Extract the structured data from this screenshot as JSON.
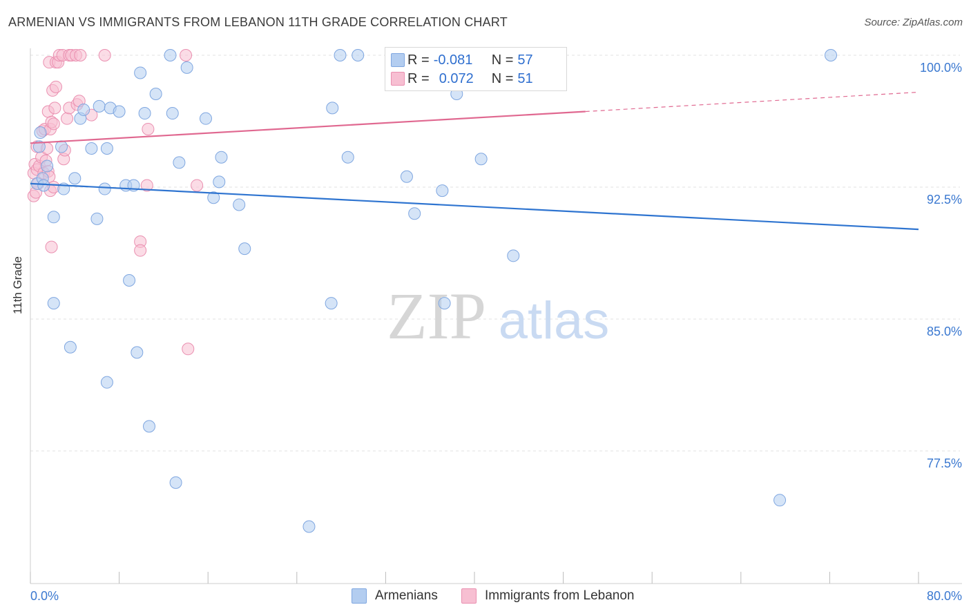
{
  "header": {
    "title": "ARMENIAN VS IMMIGRANTS FROM LEBANON 11TH GRADE CORRELATION CHART",
    "source": "Source: ZipAtlas.com"
  },
  "watermark": {
    "zip": "ZIP",
    "atlas": "atlas"
  },
  "legend": {
    "series1": {
      "r_label": "R =",
      "r_value": "-0.081",
      "n_label": "N =",
      "n_value": "57"
    },
    "series2": {
      "r_label": "R =",
      "r_value": "0.072",
      "n_label": "N =",
      "n_value": "51"
    }
  },
  "bottom_legend": {
    "series1": "Armenians",
    "series2": "Immigrants from Lebanon"
  },
  "colors": {
    "armenians_fill": "#b3cdf0",
    "armenians_stroke": "#7ea6e0",
    "armenians_line": "#2e74d0",
    "lebanon_fill": "#f7bfd2",
    "lebanon_stroke": "#ea8fb0",
    "lebanon_line": "#e06890",
    "axis_text": "#3a78d0",
    "grid": "#e2e2e2"
  },
  "chart_data": {
    "type": "scatter",
    "title": "ARMENIAN VS IMMIGRANTS FROM LEBANON 11TH GRADE CORRELATION CHART",
    "xlabel": "",
    "ylabel": "11th Grade",
    "xlim": [
      0,
      80
    ],
    "ylim": [
      71,
      100.5
    ],
    "x_tick_labels": [
      "0.0%",
      "80.0%"
    ],
    "y_ticks": [
      77.5,
      85.0,
      92.5,
      100.0
    ],
    "y_tick_labels": [
      "77.5%",
      "85.0%",
      "92.5%",
      "100.0%"
    ],
    "grid": true,
    "legend_position": "top-center",
    "series": [
      {
        "name": "Armenians",
        "R": -0.081,
        "N": 57,
        "trend": {
          "x": [
            0,
            80
          ],
          "y": [
            92.7,
            90.1
          ]
        },
        "points": [
          [
            0.6,
            92.7
          ],
          [
            0.9,
            95.6
          ],
          [
            0.8,
            94.8
          ],
          [
            1.1,
            93.0
          ],
          [
            1.2,
            92.6
          ],
          [
            1.5,
            93.7
          ],
          [
            2.1,
            90.8
          ],
          [
            2.8,
            94.8
          ],
          [
            3.0,
            92.4
          ],
          [
            4.0,
            93.0
          ],
          [
            4.5,
            96.4
          ],
          [
            4.8,
            96.9
          ],
          [
            5.5,
            94.7
          ],
          [
            6.0,
            90.7
          ],
          [
            6.2,
            97.1
          ],
          [
            6.7,
            92.4
          ],
          [
            6.9,
            94.7
          ],
          [
            7.2,
            97.0
          ],
          [
            8.0,
            96.8
          ],
          [
            8.6,
            92.6
          ],
          [
            9.3,
            92.6
          ],
          [
            9.9,
            99.0
          ],
          [
            10.3,
            96.7
          ],
          [
            11.3,
            97.8
          ],
          [
            12.6,
            100.0
          ],
          [
            12.8,
            96.7
          ],
          [
            13.4,
            93.9
          ],
          [
            14.1,
            99.3
          ],
          [
            15.8,
            96.4
          ],
          [
            16.5,
            91.9
          ],
          [
            17.0,
            92.8
          ],
          [
            17.2,
            94.2
          ],
          [
            18.8,
            91.5
          ],
          [
            19.3,
            89.0
          ],
          [
            27.2,
            97.0
          ],
          [
            27.9,
            100.0
          ],
          [
            28.6,
            94.2
          ],
          [
            29.5,
            100.0
          ],
          [
            32.8,
            100.0
          ],
          [
            33.9,
            93.1
          ],
          [
            34.6,
            91.0
          ],
          [
            37.1,
            92.3
          ],
          [
            38.4,
            97.8
          ],
          [
            40.6,
            94.1
          ],
          [
            43.5,
            88.6
          ],
          [
            72.1,
            100.0
          ],
          [
            2.1,
            85.9
          ],
          [
            3.6,
            83.4
          ],
          [
            8.9,
            87.2
          ],
          [
            9.6,
            83.1
          ],
          [
            6.9,
            81.4
          ],
          [
            10.7,
            78.9
          ],
          [
            13.1,
            75.7
          ],
          [
            25.1,
            73.2
          ],
          [
            27.1,
            85.9
          ],
          [
            37.3,
            85.9
          ],
          [
            67.5,
            74.7
          ]
        ]
      },
      {
        "name": "Immigrants from Lebanon",
        "R": 0.072,
        "N": 51,
        "trend": {
          "x": [
            0,
            50
          ],
          "y": [
            95.0,
            96.8
          ],
          "dashed_to": {
            "x": 80,
            "y": 97.9
          }
        },
        "points": [
          [
            0.3,
            92.0
          ],
          [
            0.3,
            93.3
          ],
          [
            0.4,
            93.8
          ],
          [
            0.5,
            92.2
          ],
          [
            0.6,
            94.8
          ],
          [
            0.6,
            93.5
          ],
          [
            0.7,
            92.7
          ],
          [
            0.8,
            93.7
          ],
          [
            1.0,
            94.2
          ],
          [
            1.1,
            95.7
          ],
          [
            1.2,
            93.3
          ],
          [
            1.3,
            95.8
          ],
          [
            1.4,
            94.0
          ],
          [
            1.5,
            94.7
          ],
          [
            1.6,
            93.4
          ],
          [
            1.6,
            96.8
          ],
          [
            1.7,
            93.1
          ],
          [
            1.7,
            99.6
          ],
          [
            1.8,
            92.3
          ],
          [
            1.8,
            95.8
          ],
          [
            1.9,
            96.2
          ],
          [
            1.9,
            89.1
          ],
          [
            2.0,
            98.0
          ],
          [
            2.1,
            92.5
          ],
          [
            2.1,
            96.1
          ],
          [
            2.2,
            97.0
          ],
          [
            2.3,
            98.2
          ],
          [
            2.3,
            99.6
          ],
          [
            2.5,
            99.6
          ],
          [
            2.6,
            100.0
          ],
          [
            2.9,
            100.0
          ],
          [
            3.0,
            94.1
          ],
          [
            3.1,
            94.6
          ],
          [
            3.3,
            96.4
          ],
          [
            3.5,
            97.0
          ],
          [
            3.5,
            100.0
          ],
          [
            3.7,
            100.0
          ],
          [
            4.1,
            100.0
          ],
          [
            4.2,
            97.2
          ],
          [
            4.4,
            97.4
          ],
          [
            4.5,
            100.0
          ],
          [
            5.5,
            96.6
          ],
          [
            6.7,
            100.0
          ],
          [
            9.9,
            89.4
          ],
          [
            9.9,
            88.9
          ],
          [
            10.5,
            92.6
          ],
          [
            10.6,
            95.8
          ],
          [
            14.0,
            100.0
          ],
          [
            15.0,
            92.6
          ],
          [
            14.2,
            83.3
          ],
          [
            44.4,
            100.0
          ]
        ]
      }
    ]
  }
}
